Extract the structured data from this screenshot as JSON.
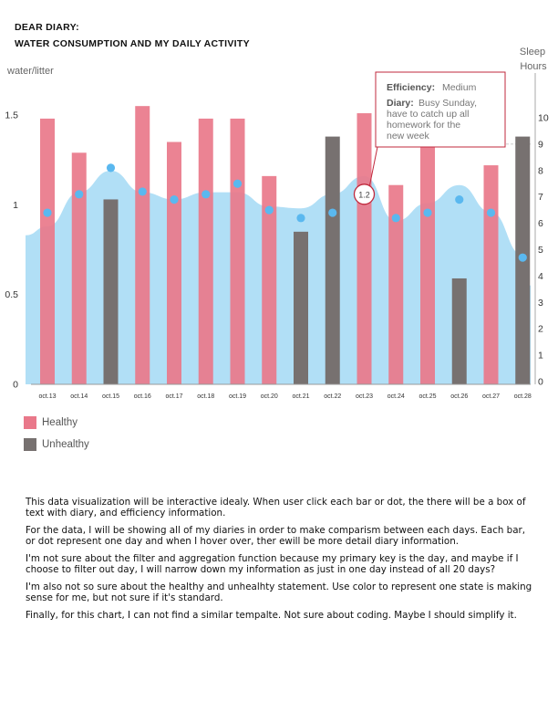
{
  "header": {
    "line1": "DEAR DIARY:",
    "line2": "WATER CONSUMPTION AND MY DAILY ACTIVITY"
  },
  "chart_data": {
    "type": "bar",
    "categories": [
      "oct.13",
      "oct.14",
      "oct.15",
      "oct.16",
      "oct.17",
      "oct.18",
      "oct.19",
      "oct.20",
      "oct.21",
      "oct.22",
      "oct.23",
      "oct.24",
      "oct.25",
      "oct.26",
      "oct.27",
      "oct.28"
    ],
    "ylabel": "water/litter",
    "y2label_line1": "Sleep",
    "y2label_line2": "Hours",
    "ylim": [
      0,
      1.8
    ],
    "y2lim": [
      0,
      14
    ],
    "yticks": [
      "0",
      "0.5",
      "1",
      "1.5"
    ],
    "y2ticks": [
      "0",
      "1",
      "2",
      "3",
      "4",
      "5",
      "6",
      "7",
      "8",
      "9",
      "10"
    ],
    "series": [
      {
        "name": "Healthy",
        "color": "#e9788a",
        "values": [
          1.48,
          1.29,
          null,
          1.55,
          1.35,
          1.48,
          1.48,
          1.16,
          null,
          null,
          1.51,
          1.11,
          1.32,
          null,
          1.22,
          null
        ]
      },
      {
        "name": "Unhealthy",
        "color": "#777170",
        "values": [
          null,
          null,
          1.03,
          null,
          null,
          null,
          null,
          null,
          0.85,
          1.38,
          null,
          null,
          null,
          0.59,
          null,
          1.38
        ]
      }
    ],
    "area": {
      "color": "#a9dcf5",
      "values": [
        0.88,
        1.07,
        1.19,
        1.07,
        1.03,
        1.07,
        1.07,
        0.99,
        0.98,
        1.06,
        1.16,
        0.91,
        1.01,
        1.11,
        0.96,
        0.72
      ]
    },
    "points": {
      "color": "#5ab8ef",
      "values": [
        6.4,
        7.1,
        8.1,
        7.2,
        6.9,
        7.1,
        7.5,
        6.5,
        6.2,
        6.4,
        7.1,
        6.2,
        6.4,
        6.9,
        6.4,
        4.7
      ]
    },
    "highlight": {
      "index": 10,
      "label": "1.2"
    },
    "reference_line": 9,
    "tooltip": {
      "eff_key": "Efficiency:",
      "eff_val": "Medium",
      "diary_key": "Diary:",
      "diary_line1": "Busy Sunday,",
      "diary_line2": "have to catch up all",
      "diary_line3": "homework for the",
      "diary_line4": "new week"
    }
  },
  "legend": [
    {
      "label": "Healthy",
      "color": "#e9788a"
    },
    {
      "label": "Unhealthy",
      "color": "#777170"
    }
  ],
  "notes": [
    "This data visualization will be interactive idealy. When user click each bar or dot, the there will  be a box of text with diary, and efficiency information.",
    "For the data, I will be showing all of my diaries in order to make comparism between each days. Each bar, or dot represent one day and when I hover over, ther ewill be more detail diary information.",
    "I'm not sure about the filter and aggregation function because my primary key is the day, and maybe if I choose to filter out day, I will narrow down my information as just in one day instead of all 20 days?",
    "I'm also not so sure about the healthy and unhealhty statement. Use color to represent one state is making sense for me, but not sure if it's standard.",
    "Finally, for this chart, I can not find a similar tempalte. Not sure about coding. Maybe I should simplify it."
  ]
}
